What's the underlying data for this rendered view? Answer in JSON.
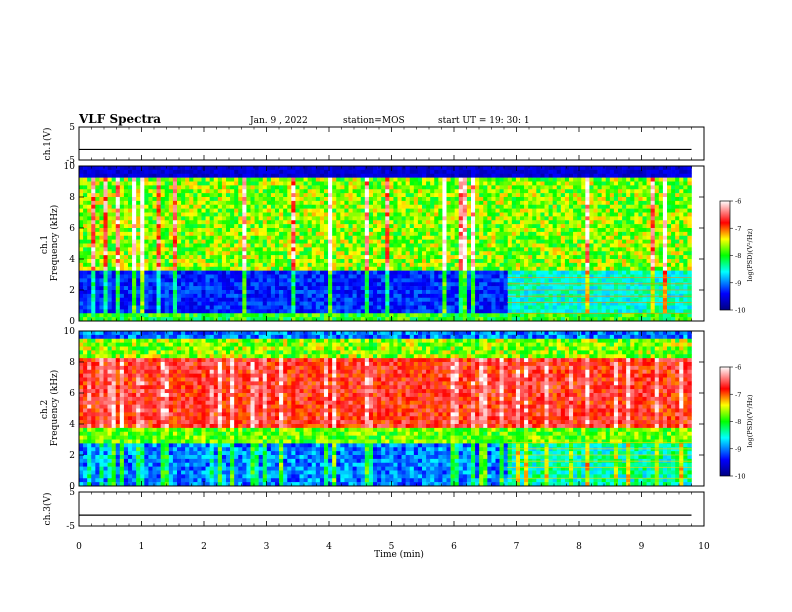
{
  "header": {
    "title": "VLF Spectra",
    "date": "Jan. 9 , 2022",
    "station": "station=MOS",
    "start": "start UT =  19: 30: 1"
  },
  "chart_data": [
    {
      "type": "line",
      "panel": "ch1-voltage",
      "ylabel": "ch.1(V)",
      "ylim": [
        -5,
        5
      ],
      "yticks": [
        "5",
        "-5"
      ],
      "series": [
        {
          "x": [
            0,
            9.8
          ],
          "values": [
            -1.8,
            -1.8
          ]
        }
      ]
    },
    {
      "type": "heatmap",
      "panel": "ch1-spectrogram",
      "ylabel": "ch.1\nFrequency (kHz)",
      "ylim": [
        0,
        10
      ],
      "yticks": [
        "0",
        "2",
        "4",
        "6",
        "8",
        "10"
      ],
      "xlim": [
        0,
        10
      ],
      "data_extent_min": 9.8,
      "color_scale": {
        "label": "log(PSD)(V²/Hz)",
        "min": -10,
        "max": -6,
        "ticks": [
          "-6",
          "-7",
          "-8",
          "-9",
          "-10"
        ]
      },
      "description_bands": [
        {
          "fmin": 3.2,
          "fmax": 9.2,
          "level": -7.8
        },
        {
          "fmin": 0.3,
          "fmax": 3.2,
          "level": -9.6
        }
      ]
    },
    {
      "type": "heatmap",
      "panel": "ch2-spectrogram",
      "ylabel": "ch.2\nFrequency (kHz)",
      "ylim": [
        0,
        10
      ],
      "yticks": [
        "0",
        "2",
        "4",
        "6",
        "8",
        "10"
      ],
      "xlim": [
        0,
        10
      ],
      "color_scale": {
        "label": "log(PSD)(V²/Hz)",
        "min": -10,
        "max": -6,
        "ticks": [
          "-6",
          "-7",
          "-8",
          "-9",
          "-10"
        ]
      }
    },
    {
      "type": "line",
      "panel": "ch3-voltage",
      "ylabel": "ch.3(V)",
      "ylim": [
        -5,
        5
      ],
      "yticks": [
        "5",
        "-5"
      ],
      "series": [
        {
          "x": [
            0,
            9.8
          ],
          "values": [
            -1.8,
            -1.8
          ]
        }
      ]
    }
  ],
  "xaxis": {
    "label": "Time (min)",
    "ticks": [
      "0",
      "1",
      "2",
      "3",
      "4",
      "5",
      "6",
      "7",
      "8",
      "9",
      "10"
    ]
  }
}
